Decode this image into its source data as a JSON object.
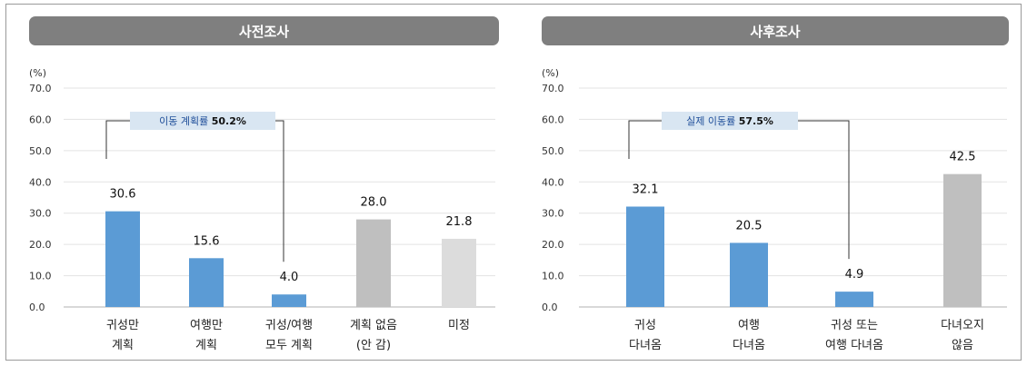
{
  "chart_data": [
    {
      "type": "bar",
      "title": "사전조사",
      "ylabel": "(%)",
      "ylim": [
        0,
        70
      ],
      "yticks": [
        "0.0",
        "10.0",
        "20.0",
        "30.0",
        "40.0",
        "50.0",
        "60.0",
        "70.0"
      ],
      "grid": true,
      "categories": [
        [
          "귀성만",
          "계획"
        ],
        [
          "여행만",
          "계획"
        ],
        [
          "귀성/여행",
          "모두 계획"
        ],
        [
          "계획 없음",
          "(안 감)"
        ],
        [
          "미정"
        ]
      ],
      "values": [
        30.6,
        15.6,
        4.0,
        28.0,
        21.8
      ],
      "value_labels": [
        "30.6",
        "15.6",
        "4.0",
        "28.0",
        "21.8"
      ],
      "colors": [
        "#5b9bd5",
        "#5b9bd5",
        "#5b9bd5",
        "#bfbfbf",
        "#dcdcdc"
      ],
      "annotation": {
        "label": "이동 계획률",
        "value": "50.2%",
        "spans": [
          0,
          2
        ]
      }
    },
    {
      "type": "bar",
      "title": "사후조사",
      "ylabel": "(%)",
      "ylim": [
        0,
        70
      ],
      "yticks": [
        "0.0",
        "10.0",
        "20.0",
        "30.0",
        "40.0",
        "50.0",
        "60.0",
        "70.0"
      ],
      "grid": true,
      "categories": [
        [
          "귀성",
          "다녀옴"
        ],
        [
          "여행",
          "다녀옴"
        ],
        [
          "귀성 또는",
          "여행 다녀옴"
        ],
        [
          "다녀오지",
          "않음"
        ]
      ],
      "values": [
        32.1,
        20.5,
        4.9,
        42.5
      ],
      "value_labels": [
        "32.1",
        "20.5",
        "4.9",
        "42.5"
      ],
      "colors": [
        "#5b9bd5",
        "#5b9bd5",
        "#5b9bd5",
        "#bfbfbf"
      ],
      "annotation": {
        "label": "실제 이동률",
        "value": "57.5%",
        "spans": [
          0,
          2
        ]
      }
    }
  ]
}
